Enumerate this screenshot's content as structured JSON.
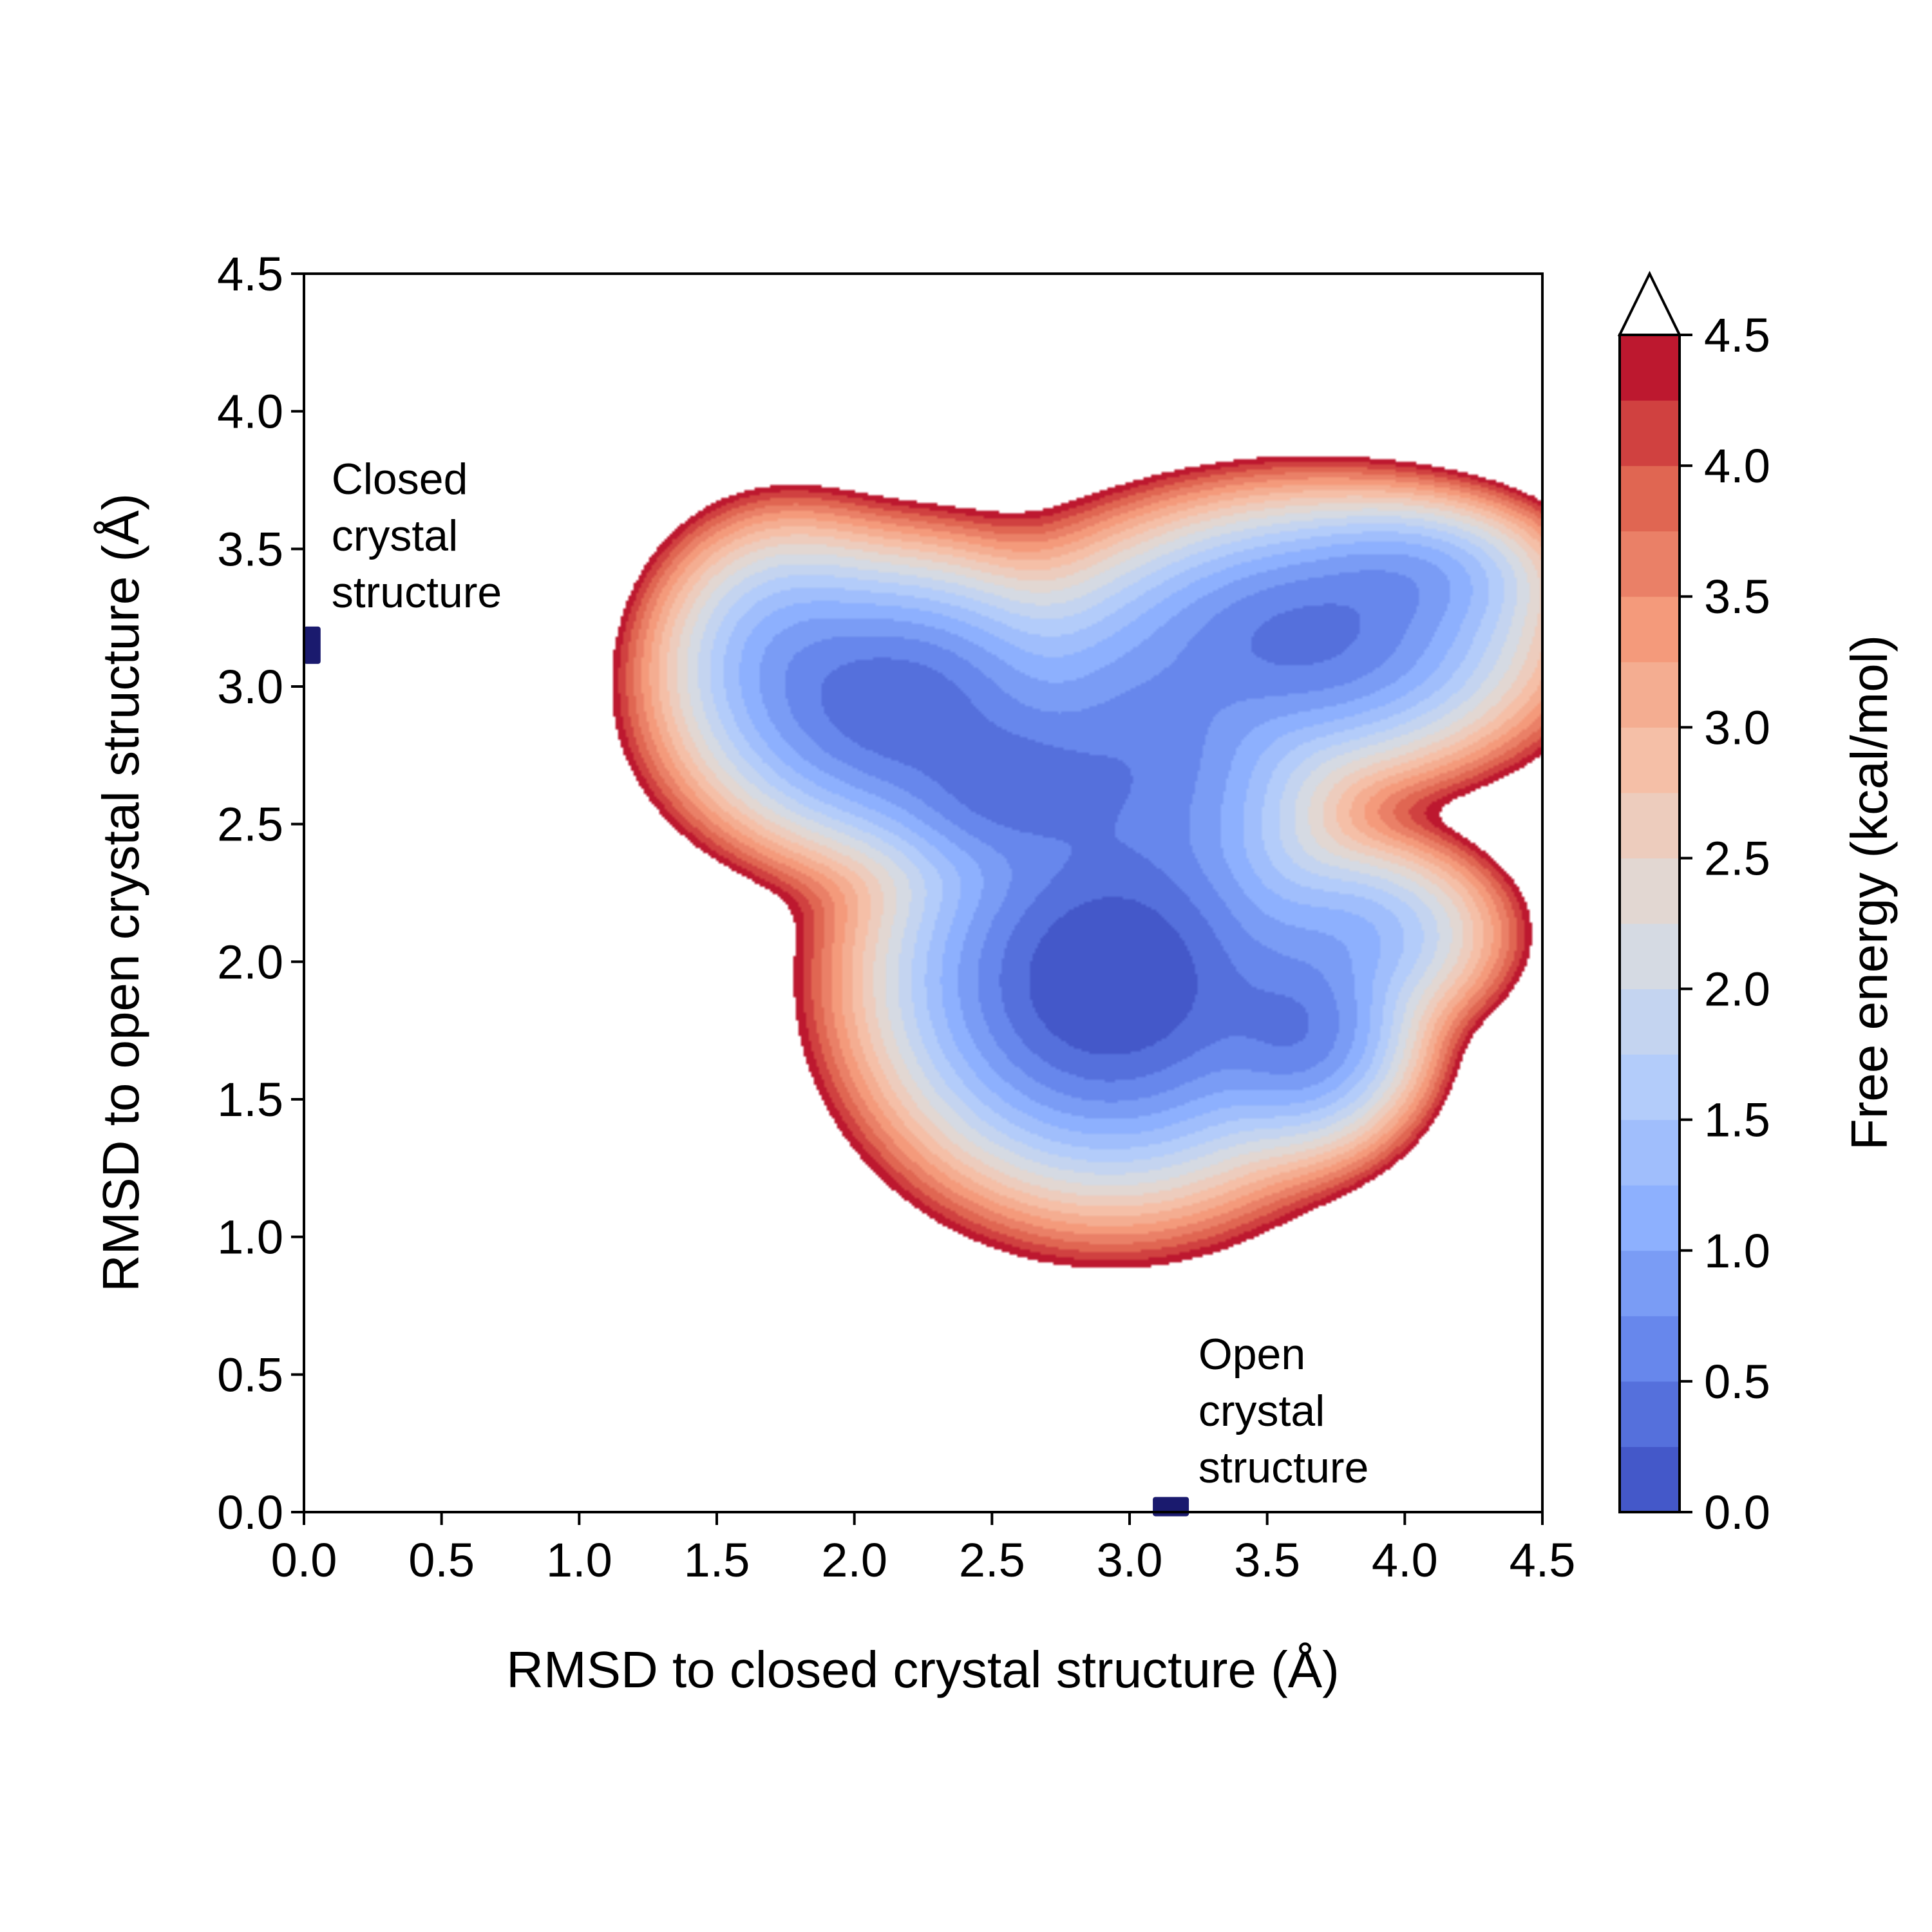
{
  "chart_data": {
    "type": "contour",
    "title": "",
    "xlabel": "RMSD to closed crystal structure (Å)",
    "ylabel": "RMSD to open crystal structure (Å)",
    "xlim": [
      0.0,
      4.5
    ],
    "ylim": [
      0.0,
      4.5
    ],
    "xticks": [
      "0.0",
      "0.5",
      "1.0",
      "1.5",
      "2.0",
      "2.5",
      "3.0",
      "3.5",
      "4.0",
      "4.5"
    ],
    "yticks": [
      "0.0",
      "0.5",
      "1.0",
      "1.5",
      "2.0",
      "2.5",
      "3.0",
      "3.5",
      "4.0",
      "4.5"
    ],
    "grid": false,
    "colormap": "coolwarm",
    "colorbar": {
      "label": "Free energy (kcal/mol)",
      "range": [
        0.0,
        4.5
      ],
      "levels": 18,
      "extend": "max",
      "ticks": [
        "0.0",
        "0.5",
        "1.0",
        "1.5",
        "2.0",
        "2.5",
        "3.0",
        "3.5",
        "4.0",
        "4.5"
      ]
    },
    "free_energy_basins": [
      {
        "x": 2.93,
        "y": 1.93,
        "min_energy": 0.1
      },
      {
        "x": 2.15,
        "y": 2.93,
        "min_energy": 0.4
      },
      {
        "x": 2.55,
        "y": 2.62,
        "min_energy": 0.7
      },
      {
        "x": 3.65,
        "y": 3.18,
        "min_energy": 0.85
      },
      {
        "x": 3.63,
        "y": 1.75,
        "min_energy": 1.0
      }
    ],
    "reference_points": [
      {
        "label": "Closed\ncrystal\nstructure",
        "x": 0.03,
        "y": 3.15,
        "color": "#1a1a6e"
      },
      {
        "label": "Open\ncrystal\nstructure",
        "x": 3.15,
        "y": 0.02,
        "color": "#1a1a6e"
      }
    ],
    "annotations": [
      {
        "lines": [
          "Closed",
          "crystal",
          "structure"
        ],
        "x": 0.1,
        "y": 3.7
      },
      {
        "lines": [
          "Open",
          "crystal",
          "structure"
        ],
        "x": 3.25,
        "y": 0.52
      }
    ]
  }
}
